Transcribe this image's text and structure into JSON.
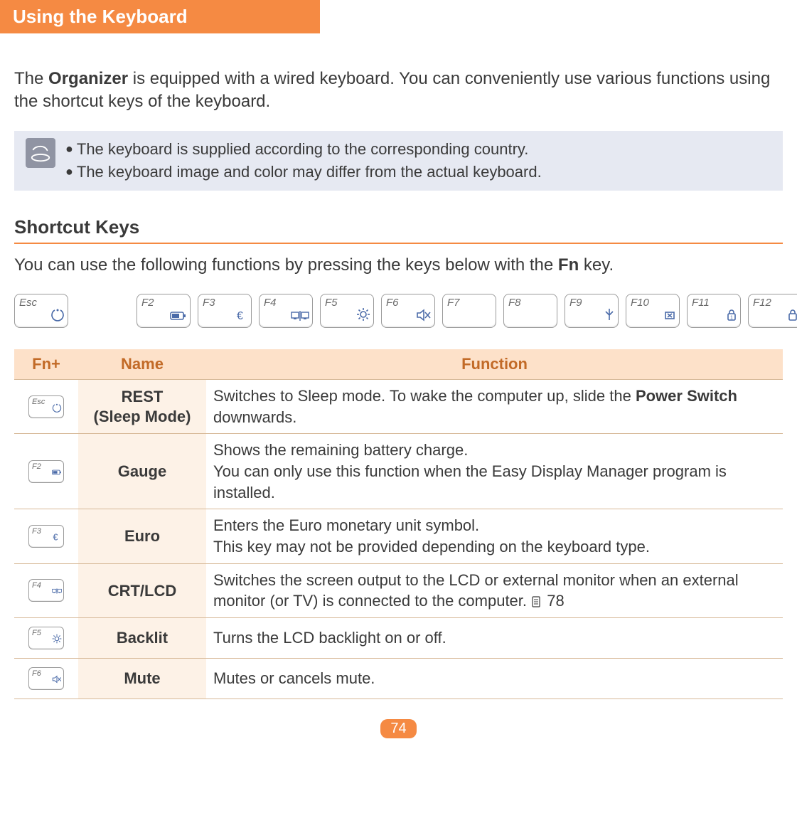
{
  "header": {
    "title": "Using the Keyboard"
  },
  "intro": {
    "prefix": "The ",
    "bold": "Organizer",
    "rest": " is equipped with a wired keyboard. You can conveniently use various functions using the shortcut keys of the keyboard."
  },
  "note": {
    "items": [
      "The keyboard is supplied according to the corresponding country.",
      "The keyboard image and color may differ from the actual keyboard."
    ]
  },
  "subheading": "Shortcut Keys",
  "sub_desc_prefix": "You can use the following functions by pressing the keys below with the ",
  "sub_desc_bold": "Fn",
  "sub_desc_suffix": " key.",
  "keyrow": [
    "Esc",
    "F2",
    "F3",
    "F4",
    "F5",
    "F6",
    "F7",
    "F8",
    "F9",
    "F10",
    "F11",
    "F12"
  ],
  "table": {
    "headers": {
      "fn": "Fn+",
      "name": "Name",
      "func": "Function"
    },
    "rows": [
      {
        "key": "Esc",
        "name": "REST\n(Sleep Mode)",
        "func_parts": [
          {
            "t": "text",
            "v": "Switches to Sleep mode. To wake the computer up, slide the "
          },
          {
            "t": "bold",
            "v": "Power Switch"
          },
          {
            "t": "text",
            "v": " downwards."
          }
        ]
      },
      {
        "key": "F2",
        "name": "Gauge",
        "func_parts": [
          {
            "t": "text",
            "v": "Shows the remaining battery charge."
          },
          {
            "t": "br"
          },
          {
            "t": "text",
            "v": "You can only use this function when the Easy Display Manager program is installed."
          }
        ]
      },
      {
        "key": "F3",
        "name": "Euro",
        "func_parts": [
          {
            "t": "text",
            "v": "Enters the Euro monetary unit symbol."
          },
          {
            "t": "br"
          },
          {
            "t": "text",
            "v": "This key may not be provided depending on the keyboard type."
          }
        ]
      },
      {
        "key": "F4",
        "name": "CRT/LCD",
        "func_parts": [
          {
            "t": "text",
            "v": "Switches the screen output to the LCD or external monitor when an external monitor (or TV) is connected to the computer. "
          },
          {
            "t": "pageref",
            "v": "78"
          }
        ]
      },
      {
        "key": "F5",
        "name": "Backlit",
        "func_parts": [
          {
            "t": "text",
            "v": "Turns the LCD backlight on or off."
          }
        ]
      },
      {
        "key": "F6",
        "name": "Mute",
        "func_parts": [
          {
            "t": "text",
            "v": "Mutes or cancels mute."
          }
        ]
      }
    ]
  },
  "page_number": "74",
  "colors": {
    "accent": "#f58a43",
    "note_bg": "#e6e9f2",
    "note_icon_bg": "#9094a3",
    "table_header_bg": "#fde1c9",
    "table_header_fg": "#c26a27",
    "name_cell_bg": "#fdf2e7",
    "key_icon": "#4a6aa8",
    "border": "#d7b998"
  }
}
